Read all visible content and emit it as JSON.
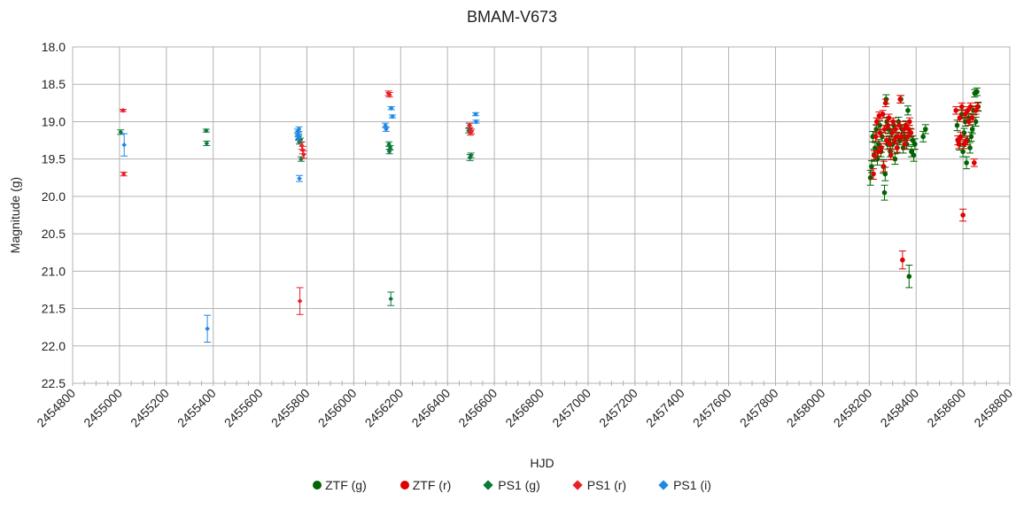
{
  "chart_data": {
    "type": "scatter",
    "title": "BMAM-V673",
    "xlabel": "HJD",
    "ylabel": "Magnitude (g)",
    "xlim": [
      2454800,
      2458800
    ],
    "ylim": [
      18.0,
      22.5
    ],
    "y_inverted": true,
    "x_ticks": [
      2454800,
      2455000,
      2455200,
      2455400,
      2455600,
      2455800,
      2456000,
      2456200,
      2456400,
      2456600,
      2456800,
      2457000,
      2457200,
      2457400,
      2457600,
      2457800,
      2458000,
      2458200,
      2458400,
      2458600,
      2458800
    ],
    "y_ticks": [
      "18.0",
      "18.5",
      "19.0",
      "19.5",
      "20.0",
      "20.5",
      "21.0",
      "21.5",
      "22.0",
      "22.5"
    ],
    "grid": true,
    "legend_position": "bottom",
    "series": [
      {
        "name": "ZTF (g)",
        "marker": "circle",
        "color": "#006400",
        "points": [
          [
            2458205,
            19.75,
            0.1
          ],
          [
            2458210,
            19.6,
            0.08
          ],
          [
            2458215,
            19.2,
            0.07
          ],
          [
            2458220,
            19.45,
            0.08
          ],
          [
            2458225,
            19.35,
            0.07
          ],
          [
            2458230,
            19.1,
            0.06
          ],
          [
            2458235,
            19.5,
            0.08
          ],
          [
            2458240,
            19.3,
            0.06
          ],
          [
            2458245,
            19.05,
            0.06
          ],
          [
            2458250,
            19.4,
            0.07
          ],
          [
            2458255,
            19.2,
            0.06
          ],
          [
            2458260,
            19.6,
            0.09
          ],
          [
            2458265,
            19.95,
            0.1
          ],
          [
            2458268,
            19.7,
            0.09
          ],
          [
            2458272,
            18.7,
            0.06
          ],
          [
            2458275,
            19.0,
            0.06
          ],
          [
            2458278,
            19.3,
            0.07
          ],
          [
            2458282,
            19.1,
            0.06
          ],
          [
            2458285,
            19.25,
            0.06
          ],
          [
            2458290,
            19.4,
            0.07
          ],
          [
            2458295,
            19.15,
            0.06
          ],
          [
            2458300,
            19.3,
            0.07
          ],
          [
            2458305,
            19.05,
            0.06
          ],
          [
            2458310,
            19.5,
            0.07
          ],
          [
            2458315,
            19.2,
            0.06
          ],
          [
            2458320,
            19.35,
            0.07
          ],
          [
            2458325,
            19.0,
            0.06
          ],
          [
            2458330,
            19.25,
            0.06
          ],
          [
            2458335,
            18.7,
            0.05
          ],
          [
            2458340,
            19.1,
            0.06
          ],
          [
            2458345,
            19.35,
            0.07
          ],
          [
            2458350,
            19.2,
            0.06
          ],
          [
            2458355,
            19.05,
            0.06
          ],
          [
            2458360,
            19.3,
            0.07
          ],
          [
            2458365,
            18.85,
            0.06
          ],
          [
            2458370,
            21.07,
            0.15
          ],
          [
            2458375,
            19.15,
            0.06
          ],
          [
            2458380,
            19.4,
            0.07
          ],
          [
            2458385,
            19.25,
            0.06
          ],
          [
            2458390,
            19.45,
            0.08
          ],
          [
            2458395,
            19.3,
            0.07
          ],
          [
            2458430,
            19.2,
            0.07
          ],
          [
            2458440,
            19.1,
            0.06
          ],
          [
            2458575,
            19.05,
            0.07
          ],
          [
            2458585,
            19.3,
            0.08
          ],
          [
            2458595,
            18.9,
            0.06
          ],
          [
            2458600,
            19.4,
            0.07
          ],
          [
            2458605,
            19.15,
            0.06
          ],
          [
            2458610,
            19.0,
            0.06
          ],
          [
            2458615,
            19.55,
            0.08
          ],
          [
            2458620,
            19.25,
            0.06
          ],
          [
            2458625,
            18.95,
            0.06
          ],
          [
            2458630,
            19.35,
            0.07
          ],
          [
            2458635,
            19.2,
            0.06
          ],
          [
            2458640,
            19.1,
            0.06
          ],
          [
            2458645,
            18.85,
            0.06
          ],
          [
            2458650,
            18.62,
            0.05
          ],
          [
            2458655,
            19.0,
            0.06
          ],
          [
            2458660,
            18.6,
            0.05
          ],
          [
            2458665,
            18.8,
            0.06
          ]
        ]
      },
      {
        "name": "ZTF (r)",
        "marker": "circle",
        "color": "#e00000",
        "points": [
          [
            2458218,
            19.7,
            0.07
          ],
          [
            2458222,
            19.45,
            0.06
          ],
          [
            2458228,
            19.2,
            0.06
          ],
          [
            2458232,
            19.0,
            0.05
          ],
          [
            2458238,
            19.4,
            0.06
          ],
          [
            2458242,
            18.92,
            0.05
          ],
          [
            2458246,
            19.15,
            0.05
          ],
          [
            2458252,
            19.35,
            0.06
          ],
          [
            2458258,
            18.9,
            0.05
          ],
          [
            2458262,
            19.6,
            0.07
          ],
          [
            2458266,
            19.1,
            0.05
          ],
          [
            2458270,
            18.75,
            0.05
          ],
          [
            2458274,
            19.25,
            0.05
          ],
          [
            2458280,
            19.05,
            0.05
          ],
          [
            2458284,
            18.95,
            0.05
          ],
          [
            2458288,
            19.3,
            0.06
          ],
          [
            2458292,
            19.45,
            0.06
          ],
          [
            2458298,
            19.15,
            0.05
          ],
          [
            2458302,
            19.0,
            0.05
          ],
          [
            2458308,
            19.25,
            0.05
          ],
          [
            2458312,
            19.1,
            0.05
          ],
          [
            2458318,
            19.35,
            0.06
          ],
          [
            2458322,
            19.2,
            0.05
          ],
          [
            2458328,
            19.05,
            0.05
          ],
          [
            2458332,
            18.7,
            0.05
          ],
          [
            2458338,
            19.2,
            0.05
          ],
          [
            2458342,
            20.85,
            0.12
          ],
          [
            2458348,
            19.1,
            0.05
          ],
          [
            2458352,
            19.3,
            0.06
          ],
          [
            2458358,
            19.05,
            0.05
          ],
          [
            2458362,
            19.2,
            0.05
          ],
          [
            2458368,
            19.1,
            0.05
          ],
          [
            2458372,
            19.0,
            0.05
          ],
          [
            2458378,
            19.15,
            0.05
          ],
          [
            2458570,
            18.85,
            0.05
          ],
          [
            2458578,
            19.25,
            0.06
          ],
          [
            2458582,
            19.3,
            0.06
          ],
          [
            2458586,
            18.95,
            0.05
          ],
          [
            2458590,
            19.2,
            0.06
          ],
          [
            2458595,
            18.8,
            0.05
          ],
          [
            2458600,
            20.25,
            0.08
          ],
          [
            2458605,
            19.3,
            0.06
          ],
          [
            2458610,
            18.9,
            0.05
          ],
          [
            2458615,
            19.25,
            0.06
          ],
          [
            2458620,
            18.85,
            0.05
          ],
          [
            2458625,
            19.0,
            0.05
          ],
          [
            2458632,
            18.8,
            0.05
          ],
          [
            2458640,
            18.95,
            0.05
          ],
          [
            2458648,
            19.55,
            0.05
          ],
          [
            2458655,
            18.85,
            0.05
          ],
          [
            2458662,
            18.8,
            0.05
          ]
        ]
      },
      {
        "name": "PS1 (g)",
        "marker": "diamond",
        "color": "#0a7a3a",
        "points": [
          [
            2455005,
            19.14,
            0.03
          ],
          [
            2455370,
            19.12,
            0.02
          ],
          [
            2455372,
            19.29,
            0.03
          ],
          [
            2455765,
            19.2,
            0.03
          ],
          [
            2455768,
            19.27,
            0.03
          ],
          [
            2455772,
            19.25,
            0.03
          ],
          [
            2455775,
            19.5,
            0.03
          ],
          [
            2456150,
            19.3,
            0.03
          ],
          [
            2456152,
            19.4,
            0.03
          ],
          [
            2456155,
            19.35,
            0.03
          ],
          [
            2456158,
            21.37,
            0.09
          ],
          [
            2456490,
            19.12,
            0.03
          ],
          [
            2456493,
            19.05,
            0.03
          ],
          [
            2456496,
            19.48,
            0.04
          ],
          [
            2456500,
            19.45,
            0.03
          ]
        ]
      },
      {
        "name": "PS1 (r)",
        "marker": "diamond",
        "color": "#e8202a",
        "points": [
          [
            2455015,
            18.85,
            0.015
          ],
          [
            2455018,
            19.7,
            0.025
          ],
          [
            2455770,
            21.4,
            0.18
          ],
          [
            2455778,
            19.32,
            0.05
          ],
          [
            2455782,
            19.38,
            0.05
          ],
          [
            2455786,
            19.44,
            0.05
          ],
          [
            2456148,
            18.62,
            0.03
          ],
          [
            2456152,
            18.64,
            0.03
          ],
          [
            2456495,
            19.05,
            0.03
          ],
          [
            2456498,
            19.15,
            0.03
          ],
          [
            2456502,
            19.13,
            0.03
          ]
        ]
      },
      {
        "name": "PS1 (i)",
        "marker": "diamond",
        "color": "#1e88e5",
        "points": [
          [
            2455020,
            19.31,
            0.15
          ],
          [
            2455375,
            21.77,
            0.18
          ],
          [
            2455760,
            19.13,
            0.03
          ],
          [
            2455762,
            19.17,
            0.03
          ],
          [
            2455764,
            19.22,
            0.03
          ],
          [
            2455766,
            19.1,
            0.03
          ],
          [
            2455768,
            19.76,
            0.04
          ],
          [
            2456135,
            19.05,
            0.03
          ],
          [
            2456138,
            19.1,
            0.03
          ],
          [
            2456160,
            18.82,
            0.02
          ],
          [
            2456165,
            18.93,
            0.02
          ],
          [
            2456520,
            18.9,
            0.02
          ],
          [
            2456522,
            19.0,
            0.02
          ]
        ]
      }
    ]
  }
}
